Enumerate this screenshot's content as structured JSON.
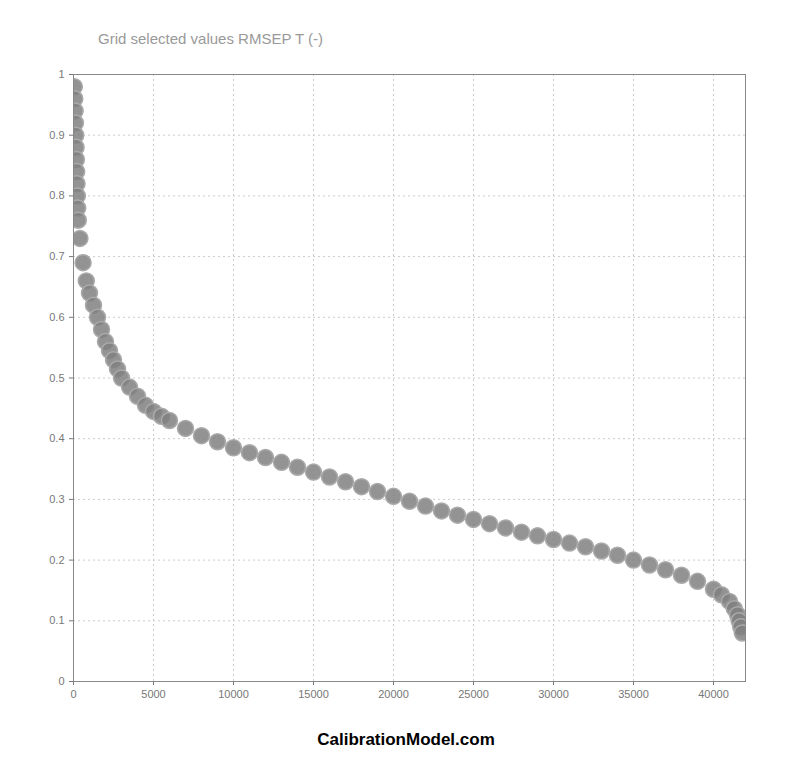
{
  "chart_data": {
    "type": "scatter",
    "title": "Grid selected values RMSEP T (-)",
    "caption": "CalibrationModel.com",
    "x": [
      50,
      80,
      100,
      120,
      140,
      160,
      180,
      200,
      220,
      240,
      260,
      300,
      400,
      600,
      800,
      1000,
      1250,
      1500,
      1750,
      2000,
      2250,
      2500,
      2750,
      3000,
      3500,
      4000,
      4500,
      5000,
      5500,
      6000,
      7000,
      8000,
      9000,
      10000,
      11000,
      12000,
      13000,
      14000,
      15000,
      16000,
      17000,
      18000,
      19000,
      20000,
      21000,
      22000,
      23000,
      24000,
      25000,
      26000,
      27000,
      28000,
      29000,
      30000,
      31000,
      32000,
      33000,
      34000,
      35000,
      36000,
      37000,
      38000,
      39000,
      40000,
      40500,
      41000,
      41300,
      41500,
      41600,
      41700,
      41800
    ],
    "values": [
      0.98,
      0.96,
      0.94,
      0.92,
      0.9,
      0.88,
      0.86,
      0.84,
      0.82,
      0.8,
      0.78,
      0.76,
      0.73,
      0.69,
      0.66,
      0.64,
      0.62,
      0.6,
      0.58,
      0.56,
      0.545,
      0.53,
      0.515,
      0.5,
      0.485,
      0.47,
      0.455,
      0.445,
      0.437,
      0.43,
      0.417,
      0.405,
      0.395,
      0.385,
      0.377,
      0.369,
      0.361,
      0.353,
      0.345,
      0.337,
      0.329,
      0.321,
      0.313,
      0.305,
      0.297,
      0.289,
      0.281,
      0.274,
      0.267,
      0.26,
      0.253,
      0.246,
      0.24,
      0.234,
      0.228,
      0.222,
      0.215,
      0.208,
      0.2,
      0.192,
      0.184,
      0.175,
      0.165,
      0.152,
      0.143,
      0.132,
      0.12,
      0.11,
      0.1,
      0.09,
      0.08
    ],
    "color": "#808080",
    "marker": "circle",
    "xlim": [
      0,
      42000
    ],
    "xticks": [
      0,
      5000,
      10000,
      15000,
      20000,
      25000,
      30000,
      35000,
      40000
    ],
    "ylim": [
      0,
      1
    ],
    "yticks": [
      0,
      0.1,
      0.2,
      0.3,
      0.4,
      0.5,
      0.6,
      0.7,
      0.8,
      0.9,
      1
    ],
    "grid": true
  }
}
